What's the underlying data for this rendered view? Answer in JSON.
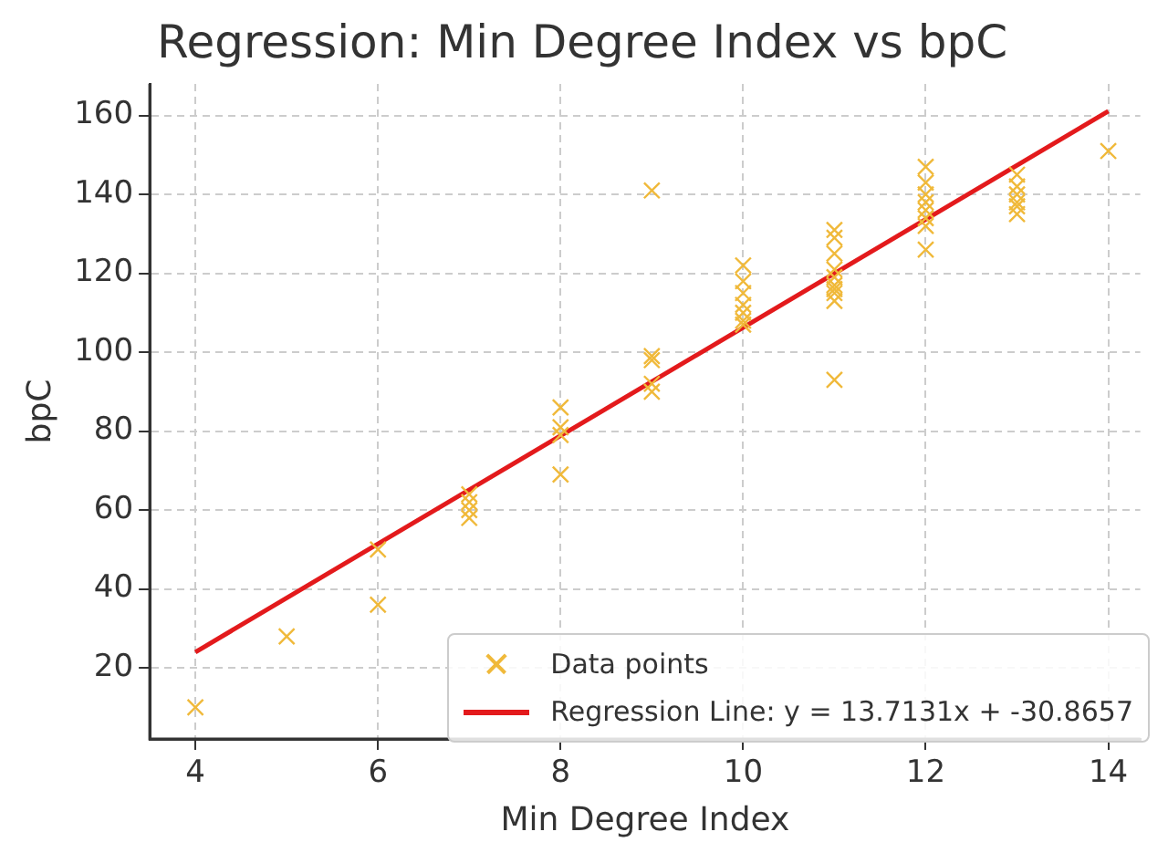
{
  "chart_data": {
    "type": "scatter",
    "title": "Regression: Min Degree Index vs bpC",
    "xlabel": "Min Degree Index",
    "ylabel": "bpC",
    "xlim": [
      3.5,
      14.35
    ],
    "xticks": [
      4,
      6,
      8,
      10,
      12,
      14
    ],
    "ylim": [
      2,
      168
    ],
    "yticks": [
      20,
      40,
      60,
      80,
      100,
      120,
      140,
      160
    ],
    "grid": true,
    "legend": "bottom right",
    "series": [
      {
        "name": "Data points",
        "marker": "cross",
        "color": "#f0b93a",
        "x": [
          4,
          5,
          6,
          6,
          7,
          7,
          7,
          7,
          8,
          8,
          8,
          8,
          9,
          9,
          9,
          9,
          9,
          10,
          10,
          10,
          10,
          10,
          10,
          10,
          11,
          11,
          11,
          11,
          11,
          11,
          11,
          11,
          11,
          11,
          12,
          12,
          12,
          12,
          12,
          12,
          12,
          12,
          13,
          13,
          13,
          13,
          13,
          13,
          14
        ],
        "values": [
          10,
          28,
          50,
          36,
          64,
          62,
          60,
          58,
          86,
          81,
          79,
          69,
          141,
          99,
          98,
          92,
          90,
          122,
          118,
          115,
          112,
          110,
          108,
          107,
          131,
          129,
          125,
          121,
          119,
          117,
          116,
          115,
          113,
          93,
          147,
          143,
          140,
          138,
          136,
          134,
          132,
          126,
          145,
          142,
          140,
          138,
          137,
          135,
          151
        ]
      },
      {
        "name": "Regression Line: y = 13.7131x + -30.8657",
        "type": "line",
        "marker": "none",
        "color": "#e31a1c",
        "x": [
          4,
          14
        ],
        "values": [
          24.0,
          161.1
        ]
      }
    ]
  }
}
